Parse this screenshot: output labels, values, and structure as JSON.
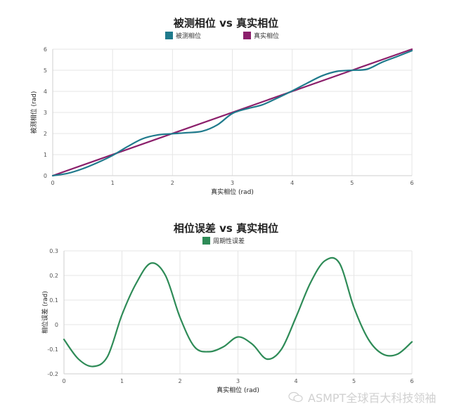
{
  "chart_data": [
    {
      "type": "line",
      "title": "被测相位 vs 真实相位",
      "xlabel": "真实相位 (rad)",
      "ylabel": "被测相位 (rad)",
      "xlim": [
        0,
        6
      ],
      "ylim": [
        0,
        6
      ],
      "xticks": [
        "0",
        "1",
        "2",
        "3",
        "4",
        "5",
        "6"
      ],
      "yticks": [
        "0",
        "1",
        "2",
        "3",
        "4",
        "5",
        "6"
      ],
      "grid": true,
      "legend_position": "top",
      "series": [
        {
          "name": "被测相位",
          "color": "#1f7a8c",
          "x": [
            0,
            0.25,
            0.5,
            0.75,
            1.0,
            1.25,
            1.5,
            1.75,
            2.0,
            2.25,
            2.5,
            2.75,
            3.0,
            3.25,
            3.5,
            3.75,
            4.0,
            4.25,
            4.5,
            4.75,
            5.0,
            5.25,
            5.5,
            5.75,
            6.0
          ],
          "y": [
            0,
            0.11,
            0.33,
            0.62,
            0.96,
            1.38,
            1.75,
            1.93,
            1.99,
            2.04,
            2.11,
            2.41,
            2.95,
            3.18,
            3.36,
            3.68,
            4.02,
            4.39,
            4.74,
            4.95,
            5.0,
            5.05,
            5.38,
            5.65,
            5.93
          ]
        },
        {
          "name": "真实相位",
          "color": "#8b1f6b",
          "x": [
            0,
            6
          ],
          "y": [
            0,
            6
          ]
        }
      ]
    },
    {
      "type": "line",
      "title": "相位误差 vs 真实相位",
      "xlabel": "真实相位 (rad)",
      "ylabel": "相位误差 (rad)",
      "xlim": [
        0,
        6
      ],
      "ylim": [
        -0.2,
        0.3
      ],
      "xticks": [
        "0",
        "1",
        "2",
        "3",
        "4",
        "5",
        "6"
      ],
      "yticks": [
        "-0.2",
        "-0.1",
        "0",
        "0.1",
        "0.2",
        "0.3"
      ],
      "grid": true,
      "legend_position": "top",
      "series": [
        {
          "name": "周期性误差",
          "color": "#2e8b57",
          "x": [
            0,
            0.25,
            0.5,
            0.75,
            1.0,
            1.25,
            1.5,
            1.75,
            2.0,
            2.25,
            2.5,
            2.75,
            3.0,
            3.25,
            3.5,
            3.75,
            4.0,
            4.25,
            4.5,
            4.75,
            5.0,
            5.25,
            5.5,
            5.75,
            6.0
          ],
          "y": [
            -0.06,
            -0.14,
            -0.17,
            -0.13,
            0.04,
            0.17,
            0.25,
            0.2,
            0.03,
            -0.09,
            -0.11,
            -0.09,
            -0.05,
            -0.08,
            -0.14,
            -0.1,
            0.03,
            0.17,
            0.26,
            0.25,
            0.07,
            -0.06,
            -0.12,
            -0.12,
            -0.07
          ]
        }
      ]
    }
  ],
  "charts": {
    "top": {
      "title": "被测相位 vs 真实相位",
      "legend": [
        {
          "label": "被测相位",
          "color": "#1f7a8c"
        },
        {
          "label": "真实相位",
          "color": "#8b1f6b"
        }
      ],
      "xlabel": "真实相位 (rad)",
      "ylabel": "被测相位 (rad)"
    },
    "bottom": {
      "title": "相位误差 vs 真实相位",
      "legend": [
        {
          "label": "周期性误差",
          "color": "#2e8b57"
        }
      ],
      "xlabel": "真实相位 (rad)",
      "ylabel": "相位误差 (rad)"
    }
  },
  "watermark": {
    "text": "ASMPT全球百大科技领袖"
  }
}
